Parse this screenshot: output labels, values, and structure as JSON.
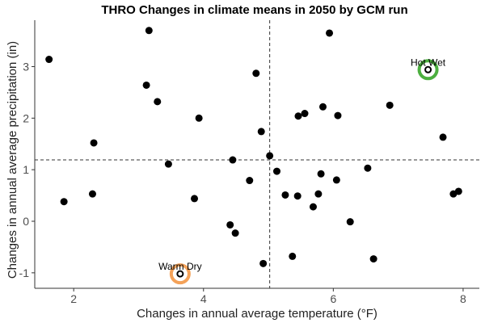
{
  "chart_data": {
    "type": "scatter",
    "title": "THRO Changes in climate means in 2050 by GCM run",
    "xlabel": "Changes in annual average temperature (°F)",
    "ylabel": "Changes in annual average precipitation (in)",
    "xlim": [
      1.4,
      8.25
    ],
    "ylim": [
      -1.3,
      3.9
    ],
    "xticks": [
      2,
      4,
      6,
      8
    ],
    "yticks": [
      -1,
      0,
      1,
      2,
      3
    ],
    "grid": false,
    "reference_lines": {
      "vline_x": 5.02,
      "hline_y": 1.19
    },
    "points": [
      {
        "x": 1.62,
        "y": 3.14
      },
      {
        "x": 1.85,
        "y": 0.38
      },
      {
        "x": 2.29,
        "y": 0.53
      },
      {
        "x": 2.31,
        "y": 1.52
      },
      {
        "x": 3.12,
        "y": 2.64
      },
      {
        "x": 3.16,
        "y": 3.7
      },
      {
        "x": 3.29,
        "y": 2.32
      },
      {
        "x": 3.46,
        "y": 1.11
      },
      {
        "x": 3.64,
        "y": -1.02
      },
      {
        "x": 3.86,
        "y": 0.44
      },
      {
        "x": 3.93,
        "y": 2.0
      },
      {
        "x": 4.41,
        "y": -0.07
      },
      {
        "x": 4.45,
        "y": 1.19
      },
      {
        "x": 4.49,
        "y": -0.23
      },
      {
        "x": 4.71,
        "y": 0.79
      },
      {
        "x": 4.81,
        "y": 2.87
      },
      {
        "x": 4.89,
        "y": 1.74
      },
      {
        "x": 4.92,
        "y": -0.82
      },
      {
        "x": 5.02,
        "y": 1.27
      },
      {
        "x": 5.13,
        "y": 0.97
      },
      {
        "x": 5.26,
        "y": 0.51
      },
      {
        "x": 5.37,
        "y": -0.68
      },
      {
        "x": 5.45,
        "y": 0.49
      },
      {
        "x": 5.46,
        "y": 2.04
      },
      {
        "x": 5.56,
        "y": 2.09
      },
      {
        "x": 5.69,
        "y": 0.28
      },
      {
        "x": 5.77,
        "y": 0.53
      },
      {
        "x": 5.81,
        "y": 0.92
      },
      {
        "x": 5.84,
        "y": 2.22
      },
      {
        "x": 5.94,
        "y": 3.65
      },
      {
        "x": 6.05,
        "y": 0.8
      },
      {
        "x": 6.07,
        "y": 2.05
      },
      {
        "x": 6.26,
        "y": -0.01
      },
      {
        "x": 6.53,
        "y": 1.03
      },
      {
        "x": 6.62,
        "y": -0.73
      },
      {
        "x": 6.87,
        "y": 2.25
      },
      {
        "x": 7.46,
        "y": 2.94
      },
      {
        "x": 7.69,
        "y": 1.63
      },
      {
        "x": 7.85,
        "y": 0.53
      },
      {
        "x": 7.93,
        "y": 0.58
      }
    ],
    "annotations": [
      {
        "label": "Warm Dry",
        "x": 3.64,
        "y": -1.02,
        "ring_color": "#f4a259"
      },
      {
        "label": "Hot Wet",
        "x": 7.46,
        "y": 2.94,
        "ring_color": "#4caf3f"
      }
    ]
  }
}
